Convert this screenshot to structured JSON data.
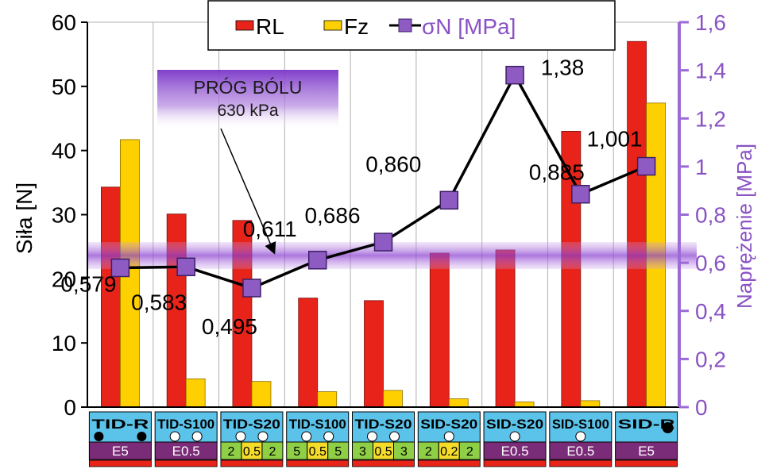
{
  "chart_data": {
    "type": "bar",
    "ylabel": "Siła [N]",
    "y2label": "Naprężenie [MPa]",
    "ylim": [
      0,
      60
    ],
    "y2lim": [
      0,
      1.6
    ],
    "y_ticks": [
      "0",
      "10",
      "20",
      "30",
      "40",
      "50",
      "60"
    ],
    "y2_ticks": [
      "0",
      "0,2",
      "0,4",
      "0,6",
      "0,8",
      "1",
      "1,2",
      "1,4",
      "1,6"
    ],
    "categories": [
      {
        "name": "TID-R",
        "markers": "black",
        "bottom": [
          "E5"
        ]
      },
      {
        "name": "TID-S100",
        "markers": "white",
        "bottom": [
          "E0.5"
        ]
      },
      {
        "name": "TID-S20",
        "markers": "white",
        "bottom": [
          "2",
          "0.5",
          "2"
        ]
      },
      {
        "name": "TID-S100",
        "markers": "white",
        "bottom": [
          "5",
          "0.5",
          "5"
        ]
      },
      {
        "name": "TID-S20",
        "markers": "white",
        "bottom": [
          "3",
          "0.5",
          "3"
        ]
      },
      {
        "name": "SID-S20",
        "markers": "white1",
        "bottom": [
          "2",
          "0.2",
          "2"
        ]
      },
      {
        "name": "SID-S20",
        "markers": "white1",
        "bottom": [
          "E0.5"
        ]
      },
      {
        "name": "SID-S100",
        "markers": "white1",
        "bottom": [
          "E0.5"
        ]
      },
      {
        "name": "SID-R",
        "markers": "black1",
        "bottom": [
          "E5"
        ]
      }
    ],
    "series": [
      {
        "name": "RL",
        "color": "#e8231a",
        "values": [
          34.3,
          30.1,
          29.1,
          17.0,
          16.6,
          24.0,
          24.5,
          43.0,
          57.0
        ]
      },
      {
        "name": "Fz",
        "color": "#ffd000",
        "values": [
          41.7,
          4.4,
          4.0,
          2.4,
          2.6,
          1.3,
          0.8,
          1.0,
          47.4
        ]
      }
    ],
    "line": {
      "name": "σN [MPa]",
      "color": "#7b3fb0",
      "values": [
        0.579,
        0.583,
        0.495,
        0.611,
        0.686,
        0.86,
        1.38,
        0.885,
        1.001
      ],
      "labels": [
        "0,579",
        "0,583",
        "0,495",
        "0,611",
        "0,686",
        "0,860",
        "1,38",
        "0,885",
        "1,001"
      ]
    },
    "threshold": {
      "value": 0.63,
      "label_line1": "PRÓG BÓLU",
      "label_line2": "630 kPa"
    },
    "legend": "top-center",
    "grid": true
  }
}
